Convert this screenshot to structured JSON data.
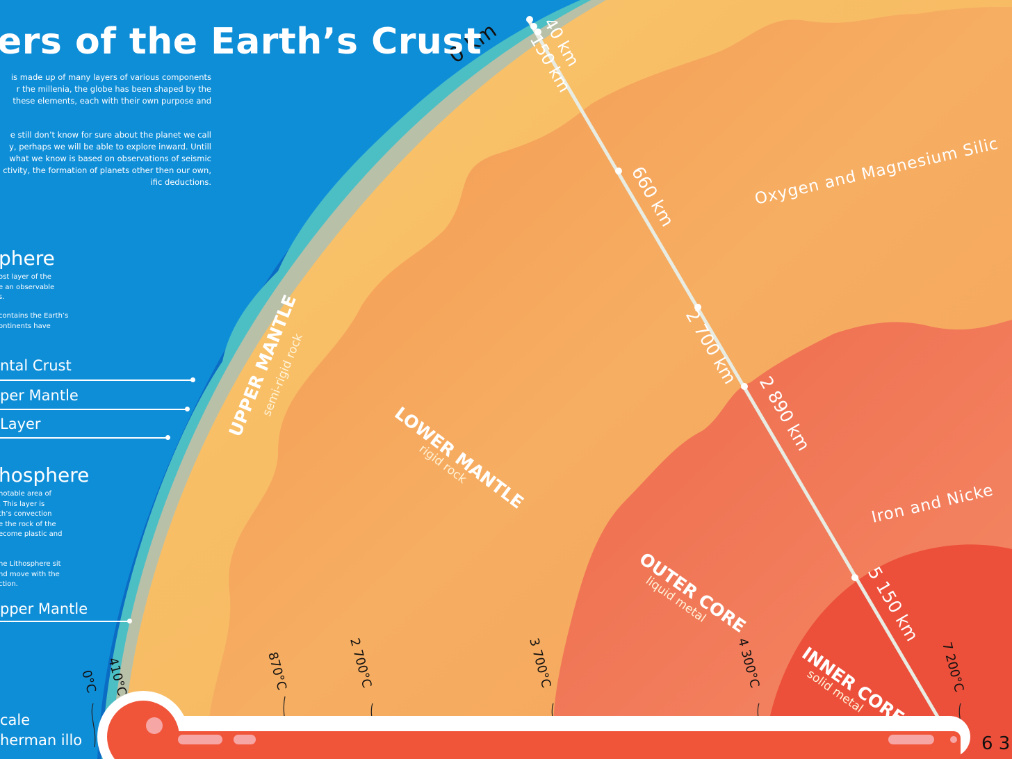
{
  "title": "ers of the Earth’s Crust",
  "intro": {
    "para1": [
      "is made up of many layers of various components",
      "r the millenia, the globe has been shaped by the",
      "these elements, each with their own purpose and"
    ],
    "para2": [
      "e still don’t know for sure about the planet we call",
      "y, perhaps we will be able to explore inward. Untill",
      "what we know is based on observations of seismic",
      "ctivity, the formation of planets other then our own,",
      "ific deductions."
    ]
  },
  "sidebar": {
    "lithosphere": {
      "heading": "phere",
      "p1": [
        "ost layer of the",
        "e an observable",
        "s."
      ],
      "p2": [
        "contains the Earth’s",
        "ontinents have"
      ]
    },
    "litho_items": [
      {
        "label": "ntal Crust"
      },
      {
        "label": "per Mantle"
      },
      {
        "label": " Layer"
      }
    ],
    "asthenosphere": {
      "heading": "hosphere",
      "p1": [
        "notable area of",
        ". This layer is",
        "th’s convection",
        "e the rock of the",
        "ecome plastic and"
      ],
      "p2": [
        "he Lithosphere sit",
        "nd move with the",
        "ction."
      ]
    },
    "astheno_item": {
      "label": "pper Mantle"
    },
    "credits": [
      "cale",
      "herman illo"
    ]
  },
  "depths": [
    {
      "label": "0 km"
    },
    {
      "label": "40 km"
    },
    {
      "label": "150 km"
    },
    {
      "label": "660 km"
    },
    {
      "label": "2 700 km"
    },
    {
      "label": "2 890 km"
    },
    {
      "label": "5 150 km"
    },
    {
      "label": "6 3"
    }
  ],
  "layers": {
    "upper_mantle": {
      "name": "UPPER MANTLE",
      "sub": "semi-rigid rock"
    },
    "lower_mantle": {
      "name": "LOWER MANTLE",
      "sub": "rigid rock"
    },
    "outer_core": {
      "name": "OUTER CORE",
      "sub": "liquid metal"
    },
    "inner_core": {
      "name": "INNER CORE",
      "sub": "solid metal"
    }
  },
  "compositions": [
    "Oxygen and Magnesium Silic",
    "Iron and Nicke"
  ],
  "temperatures": [
    "0°C",
    "410°C",
    "870°C",
    "2 700°C",
    "3 700°C",
    "4 300°C",
    "7 200°C"
  ],
  "colors": {
    "ocean": "#0f8ed8",
    "crust_teal": "#4fc3c6",
    "upper_mantle": "#f7bc63",
    "lower_mantle": "#f5a456",
    "outer_core": "#ef7655",
    "inner_core": "#ec4f3a",
    "thermometer": "#f0553a"
  }
}
